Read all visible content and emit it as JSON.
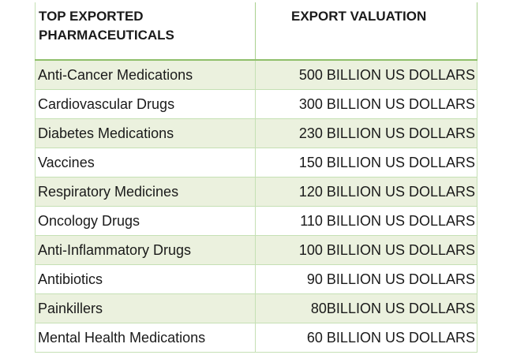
{
  "chart_data": {
    "type": "table",
    "columns": [
      "TOP EXPORTED PHARMACEUTICALS",
      "EXPORT VALUATION"
    ],
    "rows": [
      {
        "name": "Anti-Cancer Medications",
        "value_text": "500 BILLION US DOLLARS",
        "value": 500
      },
      {
        "name": "Cardiovascular Drugs",
        "value_text": "300 BILLION US DOLLARS",
        "value": 300
      },
      {
        "name": "Diabetes Medications",
        "value_text": "230 BILLION US DOLLARS",
        "value": 230
      },
      {
        "name": "Vaccines",
        "value_text": "150 BILLION US DOLLARS",
        "value": 150
      },
      {
        "name": "Respiratory Medicines",
        "value_text": "120 BILLION US DOLLARS",
        "value": 120
      },
      {
        "name": "Oncology Drugs",
        "value_text": "110 BILLION US DOLLARS",
        "value": 110
      },
      {
        "name": "Anti-Inflammatory Drugs",
        "value_text": "100 BILLION US DOLLARS",
        "value": 100
      },
      {
        "name": "Antibiotics",
        "value_text": "90 BILLION US DOLLARS",
        "value": 90
      },
      {
        "name": "Painkillers",
        "value_text": "80BILLION US DOLLARS",
        "value": 80
      },
      {
        "name": "Mental Health Medications",
        "value_text": "60 BILLION US DOLLARS",
        "value": 60
      }
    ]
  },
  "colors": {
    "row_alt": "#ebf1de",
    "border": "#c5e0b4",
    "header_rule": "#8fbf6b"
  }
}
